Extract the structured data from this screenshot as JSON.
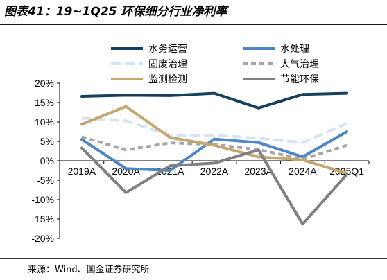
{
  "page_title": "图表41：19~1Q25 环保细分行业净利率",
  "source": "来源：Wind、国金证券研究所",
  "chart_data": {
    "type": "line",
    "categories": [
      "2019A",
      "2020A",
      "2021A",
      "2022A",
      "2023A",
      "2024A",
      "2025Q1"
    ],
    "y_ticks": [
      "20%",
      "15%",
      "10%",
      "5%",
      "0%",
      "-5%",
      "-10%",
      "-15%",
      "-20%"
    ],
    "ylim": [
      -20,
      20
    ],
    "grid": false,
    "legend_position": "top",
    "series": [
      {
        "name": "水务运营",
        "color": "#17405f",
        "dash": "",
        "values": [
          16.6,
          16.9,
          16.8,
          17.4,
          13.6,
          17.1,
          17.4
        ]
      },
      {
        "name": "水处理",
        "color": "#4e86c6",
        "dash": "",
        "values": [
          5.5,
          -2.0,
          -2.5,
          5.6,
          4.7,
          1.0,
          7.5
        ]
      },
      {
        "name": "固废治理",
        "color": "#d7e3f3",
        "dash": "14,6",
        "values": [
          11.0,
          10.3,
          6.6,
          6.6,
          5.8,
          4.7,
          9.6
        ]
      },
      {
        "name": "大气治理",
        "color": "#a6a6a6",
        "dash": "7,5",
        "values": [
          6.2,
          2.8,
          4.6,
          4.2,
          2.9,
          0.4,
          4.0
        ]
      },
      {
        "name": "监测检测",
        "color": "#c4a671",
        "dash": "",
        "values": [
          9.4,
          14.0,
          6.0,
          4.0,
          1.0,
          0.2,
          -3.2
        ]
      },
      {
        "name": "节能环保",
        "color": "#7f7f7f",
        "dash": "",
        "values": [
          3.3,
          -8.2,
          -1.3,
          -0.6,
          2.8,
          -16.3,
          -3.5
        ]
      }
    ]
  }
}
